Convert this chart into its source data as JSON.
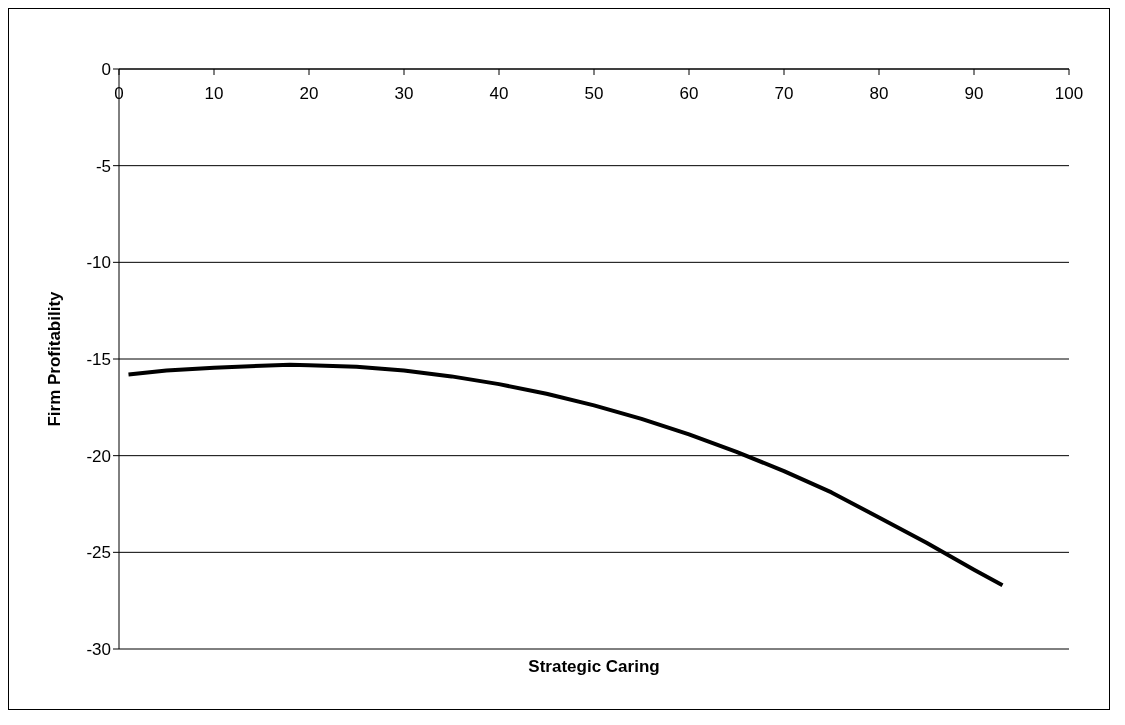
{
  "chart_data": {
    "type": "line",
    "xlabel": "Strategic Caring",
    "ylabel": "Firm Profitability",
    "x": [
      1,
      5,
      10,
      15,
      18,
      20,
      25,
      30,
      35,
      40,
      45,
      50,
      55,
      60,
      65,
      70,
      75,
      80,
      85,
      90,
      93
    ],
    "series": [
      {
        "color": "#000000",
        "values": [
          -15.8,
          -15.6,
          -15.45,
          -15.35,
          -15.3,
          -15.32,
          -15.4,
          -15.6,
          -15.9,
          -16.3,
          -16.8,
          -17.4,
          -18.1,
          -18.9,
          -19.8,
          -20.8,
          -21.9,
          -23.2,
          -24.5,
          -25.9,
          -26.7
        ]
      }
    ],
    "xlim": [
      0,
      100
    ],
    "xticks": [
      0,
      10,
      20,
      30,
      40,
      50,
      60,
      70,
      80,
      90,
      100
    ],
    "ylim": [
      -30,
      0
    ],
    "yticks": [
      -30,
      -25,
      -20,
      -15,
      -10,
      -5,
      0
    ],
    "grid": "y",
    "marker": "none",
    "line_style": "solid",
    "legend": false
  }
}
